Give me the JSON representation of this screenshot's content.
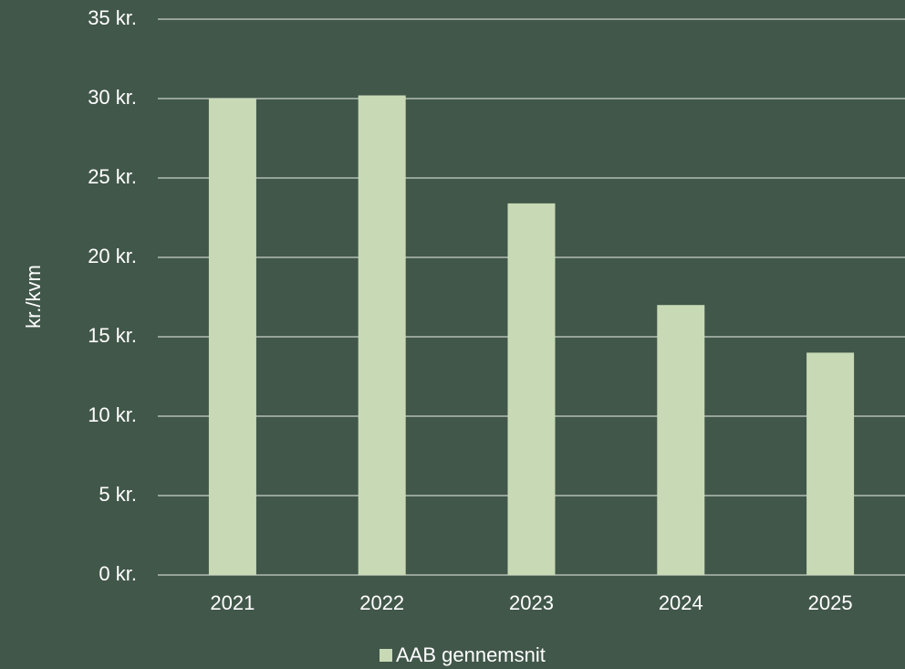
{
  "chart_data": {
    "type": "bar",
    "categories": [
      "2021",
      "2022",
      "2023",
      "2024",
      "2025"
    ],
    "series": [
      {
        "name": "AAB gennemsnit",
        "values": [
          30.0,
          30.2,
          23.4,
          17.0,
          14.0
        ]
      }
    ],
    "ylabel": "kr./kvm",
    "xlabel": "",
    "ylim": [
      0,
      35
    ],
    "yticks": [
      0,
      5,
      10,
      15,
      20,
      25,
      30,
      35
    ],
    "ytick_labels": [
      "0 kr.",
      "5 kr.",
      "10 kr.",
      "15 kr.",
      "20 kr.",
      "25 kr.",
      "30 kr.",
      "35 kr."
    ],
    "grid": true,
    "legend_position": "bottom"
  },
  "colors": {
    "background": "#41574a",
    "bar": "#c8dab5",
    "gridline": "#c9d2c6",
    "text": "#ffffff"
  }
}
